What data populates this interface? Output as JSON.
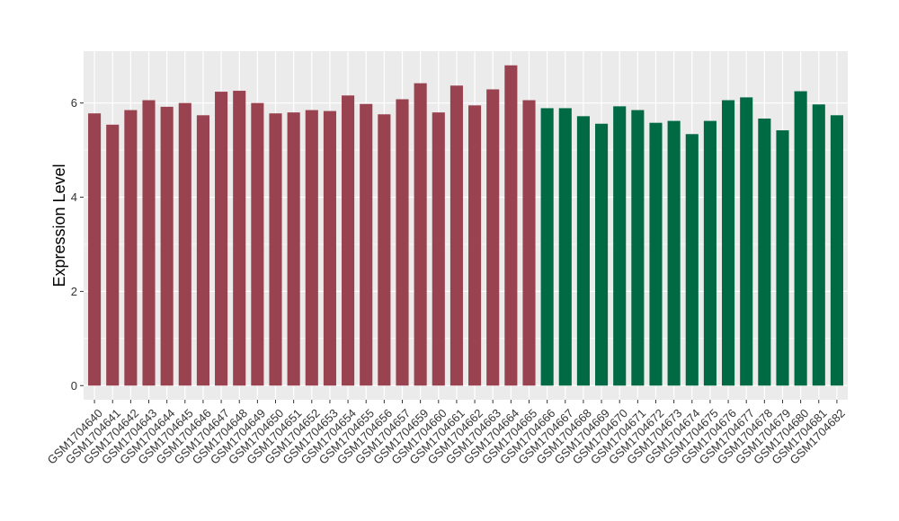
{
  "chart_data": {
    "type": "bar",
    "title": "",
    "xlabel": "",
    "ylabel": "Expression Level",
    "ylim": [
      -0.3,
      7.1
    ],
    "yticks": [
      0,
      2,
      4,
      6
    ],
    "grid": true,
    "legend": "none",
    "categories": [
      "GSM1704640",
      "GSM1704641",
      "GSM1704642",
      "GSM1704643",
      "GSM1704644",
      "GSM1704645",
      "GSM1704646",
      "GSM1704647",
      "GSM1704648",
      "GSM1704649",
      "GSM1704650",
      "GSM1704651",
      "GSM1704652",
      "GSM1704653",
      "GSM1704654",
      "GSM1704655",
      "GSM1704656",
      "GSM1704657",
      "GSM1704659",
      "GSM1704660",
      "GSM1704661",
      "GSM1704662",
      "GSM1704663",
      "GSM1704664",
      "GSM1704665",
      "GSM1704666",
      "GSM1704667",
      "GSM1704668",
      "GSM1704669",
      "GSM1704670",
      "GSM1704671",
      "GSM1704672",
      "GSM1704673",
      "GSM1704674",
      "GSM1704675",
      "GSM1704676",
      "GSM1704677",
      "GSM1704678",
      "GSM1704679",
      "GSM1704680",
      "GSM1704681",
      "GSM1704682"
    ],
    "values": [
      5.78,
      5.54,
      5.85,
      6.06,
      5.92,
      6.0,
      5.74,
      6.24,
      6.26,
      6.0,
      5.78,
      5.8,
      5.85,
      5.83,
      6.16,
      5.98,
      5.76,
      6.08,
      6.42,
      5.8,
      6.37,
      5.95,
      6.29,
      6.8,
      6.06,
      5.89,
      5.89,
      5.72,
      5.56,
      5.93,
      5.85,
      5.58,
      5.62,
      5.34,
      5.62,
      6.06,
      6.12,
      5.67,
      5.42,
      6.25,
      5.97,
      5.74
    ],
    "group_sizes": [
      25,
      17
    ],
    "colors": [
      "#9a4350",
      "#006a45"
    ],
    "panel_background": "#ebebeb",
    "grid_color": "#ffffff"
  }
}
